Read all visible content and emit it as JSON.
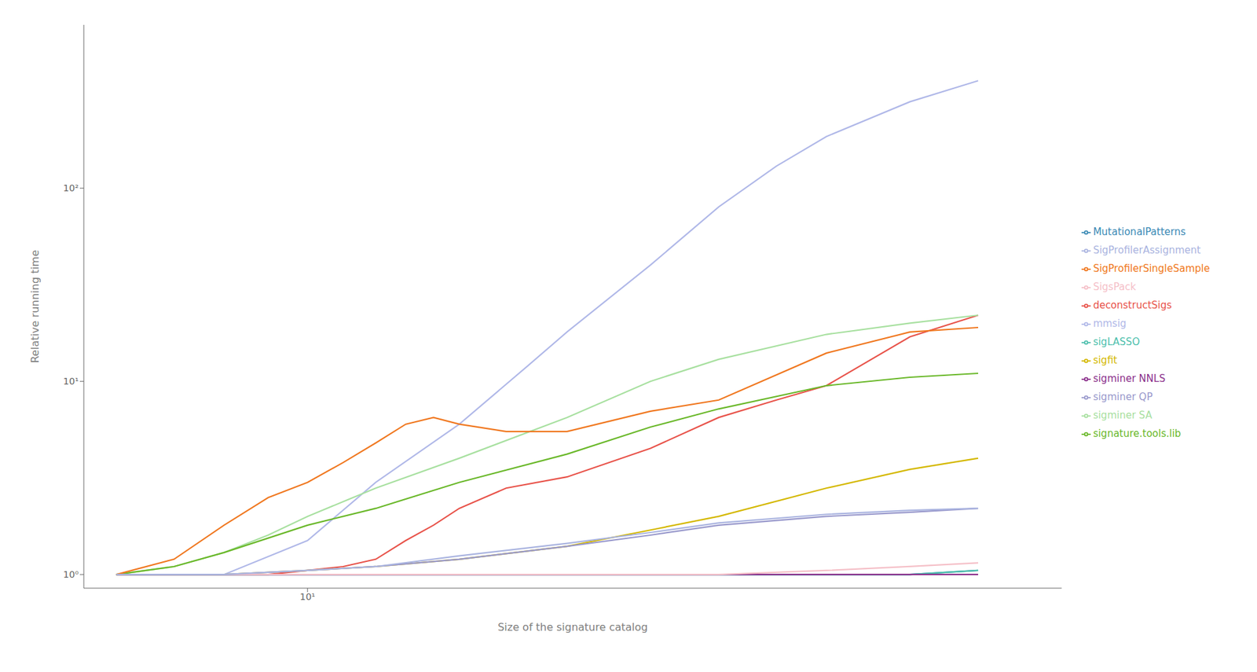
{
  "chart_data": {
    "type": "line",
    "xlabel": "Size of the signature catalog",
    "ylabel": "Relative running time",
    "log": true,
    "grid": false,
    "legend": "right",
    "xlim": [
      5.5,
      75
    ],
    "ylim": [
      0.85,
      700
    ],
    "xticks": [
      {
        "value": 10,
        "label": "10¹"
      }
    ],
    "yticks": [
      {
        "value": 1,
        "label": "10⁰"
      },
      {
        "value": 10,
        "label": "10¹"
      },
      {
        "value": 100,
        "label": "10²"
      }
    ],
    "series": [
      {
        "name": "deconstructSigs",
        "color": "#e8534a",
        "x": [
          6,
          7,
          8,
          9,
          10,
          11,
          12,
          13,
          14,
          15,
          17,
          20,
          25,
          30,
          35,
          40,
          50,
          60
        ],
        "values": [
          1.0,
          1.0,
          1.0,
          1.0,
          1.05,
          1.1,
          1.2,
          1.5,
          1.8,
          2.2,
          2.8,
          3.2,
          4.5,
          6.5,
          8.0,
          9.5,
          17.0,
          22.0
        ]
      },
      {
        "name": "mmsig",
        "color": "#b0b8e8",
        "x": [
          6,
          8,
          10,
          12,
          15,
          18,
          20,
          25,
          30,
          35,
          40,
          50,
          60
        ],
        "values": [
          1.0,
          1.0,
          1.5,
          3.0,
          6.0,
          12.0,
          18.0,
          40.0,
          80.0,
          130.0,
          185.0,
          280.0,
          360.0
        ]
      },
      {
        "name": "MutationalPatterns",
        "color": "#3b8ab5",
        "x": [
          6,
          10,
          20,
          30,
          40,
          50,
          60
        ],
        "values": [
          1.0,
          1.0,
          1.0,
          1.0,
          1.0,
          1.0,
          1.05
        ]
      },
      {
        "name": "sigfit",
        "color": "#d4b800",
        "x": [
          6,
          8,
          10,
          12,
          15,
          20,
          25,
          30,
          40,
          50,
          60
        ],
        "values": [
          1.0,
          1.0,
          1.05,
          1.1,
          1.2,
          1.4,
          1.7,
          2.0,
          2.8,
          3.5,
          4.0
        ]
      },
      {
        "name": "sigLASSO",
        "color": "#4dbfad",
        "x": [
          6,
          10,
          20,
          30,
          40,
          50,
          60
        ],
        "values": [
          1.0,
          1.0,
          1.0,
          1.0,
          1.0,
          1.0,
          1.05
        ]
      },
      {
        "name": "sigminer NNLS",
        "color": "#8b2f8b",
        "x": [
          6,
          10,
          20,
          30,
          40,
          50,
          60
        ],
        "values": [
          1.0,
          1.0,
          1.0,
          1.0,
          1.0,
          1.0,
          1.0
        ]
      },
      {
        "name": "sigminer QP",
        "color": "#9999cc",
        "x": [
          6,
          8,
          10,
          12,
          15,
          20,
          25,
          30,
          40,
          50,
          60
        ],
        "values": [
          1.0,
          1.0,
          1.05,
          1.1,
          1.2,
          1.4,
          1.6,
          1.8,
          2.0,
          2.1,
          2.2
        ]
      },
      {
        "name": "sigminer SA",
        "color": "#a8e0a0",
        "x": [
          6,
          7,
          8,
          9,
          10,
          12,
          15,
          20,
          25,
          30,
          40,
          50,
          60
        ],
        "values": [
          1.0,
          1.1,
          1.3,
          1.6,
          2.0,
          2.8,
          4.0,
          6.5,
          10.0,
          13.0,
          17.5,
          20.0,
          22.0
        ]
      },
      {
        "name": "signature.tools.lib",
        "color": "#6ab82a",
        "x": [
          6,
          7,
          8,
          10,
          12,
          15,
          20,
          25,
          30,
          40,
          50,
          60
        ],
        "values": [
          1.0,
          1.1,
          1.3,
          1.8,
          2.2,
          3.0,
          4.2,
          5.8,
          7.2,
          9.5,
          10.5,
          11.0
        ]
      },
      {
        "name": "SigProfilerSingleSample",
        "color": "#f07820",
        "x": [
          6,
          7,
          8,
          9,
          10,
          11,
          12,
          13,
          14,
          15,
          17,
          20,
          25,
          30,
          40,
          50,
          60
        ],
        "values": [
          1.0,
          1.2,
          1.8,
          2.5,
          3.0,
          3.8,
          4.8,
          6.0,
          6.5,
          6.0,
          5.5,
          5.5,
          7.0,
          8.0,
          14.0,
          18.0,
          19.0
        ]
      },
      {
        "name": "SigsPack",
        "color": "#f5c0c8",
        "x": [
          6,
          10,
          20,
          30,
          40,
          50,
          60
        ],
        "values": [
          1.0,
          1.0,
          1.0,
          1.0,
          1.05,
          1.1,
          1.15
        ]
      },
      {
        "name": "SigProfilerAssignment",
        "color": "#aab4e0",
        "x": [
          6,
          8,
          10,
          12,
          15,
          20,
          25,
          30,
          40,
          50,
          60
        ],
        "values": [
          1.0,
          1.0,
          1.05,
          1.1,
          1.25,
          1.45,
          1.65,
          1.85,
          2.05,
          2.15,
          2.2
        ]
      }
    ]
  }
}
